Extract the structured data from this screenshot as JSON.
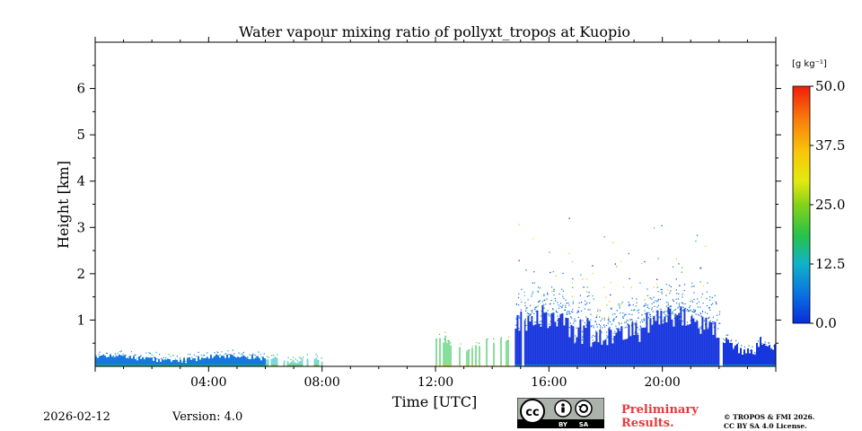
{
  "chart_data": {
    "type": "heatmap",
    "title": "Water vapour mixing ratio of pollyxt_tropos at Kuopio",
    "xlabel": "Time [UTC]",
    "ylabel": "Height [km]",
    "xlim_hours": [
      0,
      24
    ],
    "ylim_km": [
      0,
      7
    ],
    "x_ticks": [
      {
        "hour": 4,
        "label": "04:00"
      },
      {
        "hour": 8,
        "label": "08:00"
      },
      {
        "hour": 12,
        "label": "12:00"
      },
      {
        "hour": 16,
        "label": "16:00"
      },
      {
        "hour": 20,
        "label": "20:00"
      }
    ],
    "y_ticks": [
      {
        "km": 1,
        "label": "1"
      },
      {
        "km": 2,
        "label": "2"
      },
      {
        "km": 3,
        "label": "3"
      },
      {
        "km": 4,
        "label": "4"
      },
      {
        "km": 5,
        "label": "5"
      },
      {
        "km": 6,
        "label": "6"
      }
    ],
    "colorbar": {
      "unit": "[g kg⁻¹]",
      "min": 0.0,
      "max": 50.0,
      "ticks": [
        {
          "value": 0.0,
          "label": "0.0"
        },
        {
          "value": 12.5,
          "label": "12.5"
        },
        {
          "value": 25.0,
          "label": "25.0"
        },
        {
          "value": 37.5,
          "label": "37.5"
        },
        {
          "value": 50.0,
          "label": "50.0"
        }
      ],
      "colors": [
        "#0b2bdc",
        "#0a70e0",
        "#10b2c8",
        "#27c24a",
        "#86d219",
        "#e3ea10",
        "#f8c70a",
        "#f87d0b",
        "#f21c0b"
      ]
    },
    "data_regions": [
      {
        "name": "night-layer",
        "start_h": 0.0,
        "end_h": 6.0,
        "top_km": 0.22,
        "value": 6
      },
      {
        "name": "morning-sparse",
        "start_h": 6.0,
        "end_h": 8.0,
        "top_km": 0.18,
        "value": 14
      },
      {
        "name": "noon-sparse",
        "start_h": 12.0,
        "end_h": 14.8,
        "top_km": 0.55,
        "value": 17
      },
      {
        "name": "afternoon-boundary-layer",
        "start_h": 14.8,
        "end_h": 22.0,
        "top_km": 1.1,
        "value": 3
      },
      {
        "name": "evening-layer",
        "start_h": 22.1,
        "end_h": 24.0,
        "top_km": 0.55,
        "value": 3
      }
    ],
    "gaps_h": [
      15.05,
      22.05
    ]
  },
  "footer": {
    "date": "2026-02-12",
    "version": "Version: 4.0",
    "preliminary": "Preliminary Results.",
    "copyright_line1": "© TROPOS & FMI 2026.",
    "copyright_line2": "CC BY SA 4.0 License."
  },
  "license_badge": {
    "cc": "cc",
    "by": "BY",
    "sa": "SA"
  }
}
